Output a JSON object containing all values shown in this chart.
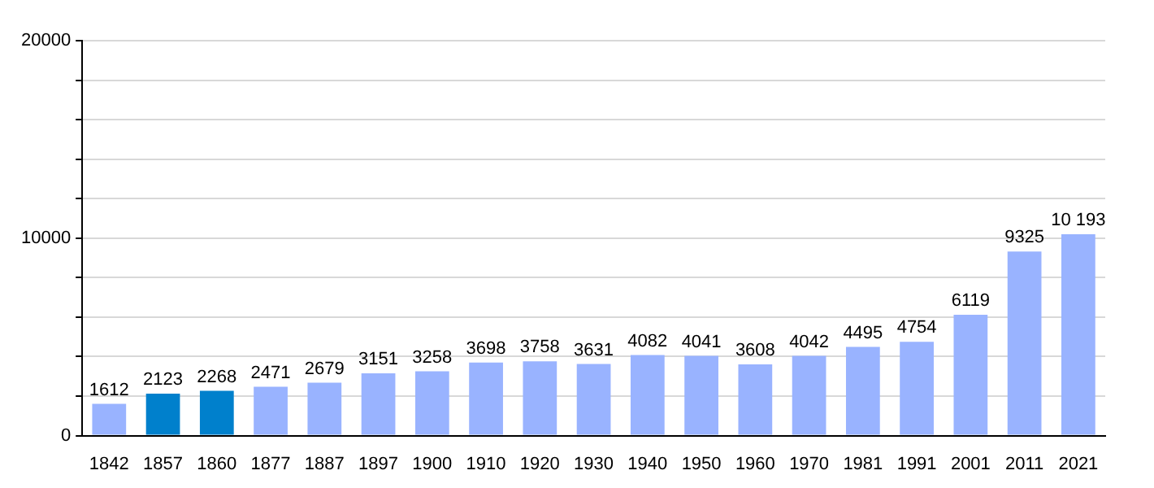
{
  "chart_data": {
    "type": "bar",
    "categories": [
      "1842",
      "1857",
      "1860",
      "1877",
      "1887",
      "1897",
      "1900",
      "1910",
      "1920",
      "1930",
      "1940",
      "1950",
      "1960",
      "1970",
      "1981",
      "1991",
      "2001",
      "2011",
      "2021"
    ],
    "values": [
      1612,
      2123,
      2268,
      2471,
      2679,
      3151,
      3258,
      3698,
      3758,
      3631,
      4082,
      4041,
      3608,
      4042,
      4495,
      4754,
      6119,
      9325,
      10193
    ],
    "colors": [
      "#99b3ff",
      "#0080cc",
      "#0080cc",
      "#99b3ff",
      "#99b3ff",
      "#99b3ff",
      "#99b3ff",
      "#99b3ff",
      "#99b3ff",
      "#99b3ff",
      "#99b3ff",
      "#99b3ff",
      "#99b3ff",
      "#99b3ff",
      "#99b3ff",
      "#99b3ff",
      "#99b3ff",
      "#99b3ff",
      "#99b3ff"
    ],
    "value_labels": [
      "1612",
      "2123",
      "2268",
      "2471",
      "2679",
      "3151",
      "3258",
      "3698",
      "3758",
      "3631",
      "4082",
      "4041",
      "3608",
      "4042",
      "4495",
      "4754",
      "6119",
      "9325",
      "10 193"
    ],
    "ylim": [
      0,
      20000
    ],
    "yticks": [
      0,
      {
        "value": 2000,
        "label": null
      },
      {
        "value": 4000,
        "label": null
      },
      {
        "value": 6000,
        "label": null
      },
      {
        "value": 8000,
        "label": null
      },
      10000,
      {
        "value": 12000,
        "label": null
      },
      {
        "value": 14000,
        "label": null
      },
      {
        "value": 16000,
        "label": null
      },
      {
        "value": 18000,
        "label": null
      },
      20000
    ],
    "grid": "y",
    "legend": false
  }
}
